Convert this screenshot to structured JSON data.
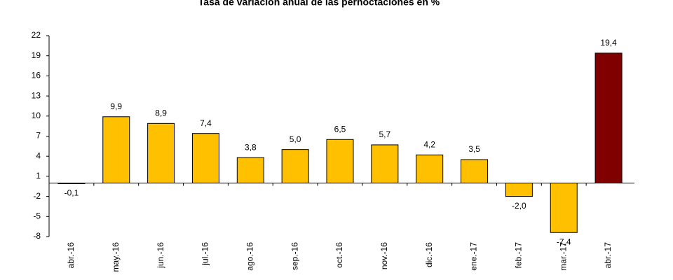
{
  "chart_data": {
    "type": "bar",
    "title": "Tasa de variación anual de las pernoctaciones en %",
    "categories": [
      "abr.-16",
      "may.-16",
      "jun.-16",
      "jul.-16",
      "ago.-16",
      "sep.-16",
      "oct.-16",
      "nov.-16",
      "dic.-16",
      "ene.-17",
      "feb.-17",
      "mar.-17",
      "abr.-17"
    ],
    "values": [
      -0.1,
      9.9,
      8.9,
      7.4,
      3.8,
      5.0,
      6.5,
      5.7,
      4.2,
      3.5,
      -2.0,
      -7.4,
      19.4
    ],
    "value_labels": [
      "-0,1",
      "9,9",
      "8,9",
      "7,4",
      "3,8",
      "5,0",
      "6,5",
      "5,7",
      "4,2",
      "3,5",
      "-2,0",
      "-7,4",
      "19,4"
    ],
    "colors": [
      "#ffc000",
      "#ffc000",
      "#ffc000",
      "#ffc000",
      "#ffc000",
      "#ffc000",
      "#ffc000",
      "#ffc000",
      "#ffc000",
      "#ffc000",
      "#ffc000",
      "#ffc000",
      "#800000"
    ],
    "ylim": [
      -8,
      22
    ],
    "yticks": [
      22,
      19,
      16,
      13,
      10,
      7,
      4,
      1,
      -2,
      -5,
      -8
    ]
  }
}
